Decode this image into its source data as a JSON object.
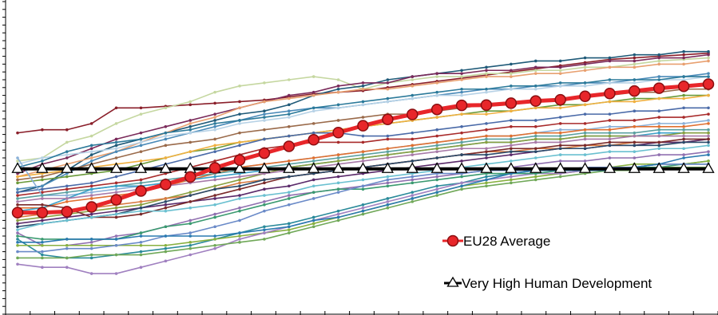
{
  "chart_data": {
    "type": "line",
    "title": "",
    "xlabel": "",
    "ylabel": "",
    "x": [
      1,
      2,
      3,
      4,
      5,
      6,
      7,
      8,
      9,
      10,
      11,
      12,
      13,
      14,
      15,
      16,
      17,
      18,
      19,
      20,
      21,
      22,
      23,
      24,
      25,
      26,
      27,
      28,
      29
    ],
    "ylim": [
      0,
      100
    ],
    "grid": false,
    "legend_position": "bottom-right",
    "highlight_series": [
      {
        "name": "EU28 Average",
        "color": "#e8262a",
        "marker": "circle",
        "values": [
          32.5,
          32.5,
          32.8,
          34.3,
          36.6,
          39.4,
          41.5,
          43.9,
          46.8,
          49.3,
          51.5,
          53.7,
          55.8,
          58.1,
          60.3,
          62.3,
          63.9,
          65.5,
          66.8,
          66.9,
          67.5,
          68.2,
          68.6,
          69.7,
          70.6,
          71.4,
          72.3,
          72.9,
          73.6
        ]
      },
      {
        "name": "Very High Human Development",
        "color": "#000000",
        "marker": "triangle",
        "values": [
          46.5,
          46.5,
          46.5,
          46.5,
          46.5,
          46.5,
          46.5,
          46.5,
          46.5,
          46.5,
          46.5,
          46.5,
          46.5,
          46.5,
          46.5,
          46.5,
          46.5,
          46.5,
          46.5,
          46.5,
          46.5,
          46.5,
          46.5,
          46.5,
          46.5,
          46.5,
          46.5,
          46.5,
          46.5
        ]
      }
    ],
    "background_series": [
      {
        "color": "#8a1f2a",
        "values": [
          58,
          59,
          59,
          61,
          66,
          66,
          66.5,
          67,
          67.5,
          68,
          68.5,
          69.5,
          70.5,
          71,
          71.5,
          72.5,
          73.5,
          74.5,
          75.5,
          76.5,
          77.5,
          78.5,
          79.5,
          80.5,
          81.5,
          82,
          82.5,
          83,
          83.5
        ]
      },
      {
        "color": "#c5d7a0",
        "values": [
          49,
          50,
          55,
          57,
          61,
          64,
          66,
          68,
          71,
          73,
          74,
          75,
          76,
          75,
          72,
          74,
          75,
          76,
          76,
          77,
          77,
          78,
          78,
          79,
          79,
          80,
          81,
          81.5,
          82
        ]
      },
      {
        "color": "#1f5a78",
        "values": [
          39,
          41,
          46,
          51,
          54,
          56,
          58,
          60,
          62,
          64,
          65,
          67,
          70,
          72,
          73,
          75,
          76,
          77,
          78,
          79,
          80,
          81,
          81,
          82,
          82,
          83,
          83,
          84,
          84
        ]
      },
      {
        "color": "#7a2a5a",
        "values": [
          45,
          48,
          50,
          53,
          56,
          58,
          60,
          62,
          64,
          66,
          68,
          70,
          71,
          73,
          74,
          74,
          76,
          77,
          77,
          78,
          78,
          79,
          79,
          80,
          81,
          81,
          82,
          82,
          83
        ]
      },
      {
        "color": "#e8a070",
        "values": [
          44,
          46,
          48,
          50,
          52,
          55,
          58,
          61,
          63,
          66,
          68,
          69,
          70,
          71,
          72,
          72,
          73,
          74,
          75,
          76,
          76,
          77,
          77,
          78,
          79,
          79,
          80,
          80,
          81
        ]
      },
      {
        "color": "#4a8ab8",
        "values": [
          40,
          41,
          45,
          49,
          52,
          54,
          56,
          58,
          60,
          62,
          64,
          65,
          66,
          66,
          67,
          68,
          69,
          70,
          71,
          72,
          72,
          73,
          73,
          74,
          74,
          75,
          76,
          76,
          77
        ]
      },
      {
        "color": "#b7d2e6",
        "values": [
          48,
          50,
          51,
          52,
          53,
          55,
          57,
          58,
          59,
          61,
          62,
          63,
          65,
          66,
          67,
          68,
          69,
          70,
          70,
          71,
          72,
          72,
          73,
          73,
          74,
          74,
          75,
          75,
          76
        ]
      },
      {
        "color": "#2c7a9a",
        "values": [
          47,
          49,
          52,
          54,
          55,
          56,
          58,
          59,
          61,
          62,
          63,
          64,
          66,
          67,
          68,
          69,
          70,
          71,
          72,
          72,
          73,
          73,
          74,
          74,
          75,
          75,
          75,
          76,
          76
        ]
      },
      {
        "color": "#9a6a4a",
        "values": [
          43,
          44,
          46,
          48,
          50,
          52,
          54,
          55,
          56,
          58,
          59,
          60,
          61,
          62,
          63,
          64,
          64,
          65,
          66,
          67,
          68,
          68,
          69,
          70,
          70,
          71,
          71,
          72,
          72
        ]
      },
      {
        "color": "#6a9a3a",
        "values": [
          42,
          43,
          44,
          45,
          46,
          48,
          50,
          52,
          53,
          55,
          56,
          57,
          58,
          59,
          60,
          61,
          62,
          63,
          64,
          65,
          65,
          66,
          67,
          67,
          68,
          69,
          69,
          70,
          70
        ]
      },
      {
        "color": "#f0b040",
        "values": [
          44,
          45,
          46,
          47,
          48,
          49,
          50,
          52,
          54,
          55,
          56,
          57,
          58,
          59,
          60,
          61,
          62,
          63,
          64,
          64,
          65,
          66,
          66,
          67,
          68,
          68,
          69,
          69,
          70
        ]
      },
      {
        "color": "#4a6aa8",
        "values": [
          39,
          40,
          41,
          42,
          44,
          46,
          48,
          50,
          52,
          54,
          56,
          57,
          58,
          58,
          57,
          57,
          58,
          59,
          60,
          61,
          62,
          62,
          63,
          64,
          64,
          65,
          65,
          66,
          66
        ]
      },
      {
        "color": "#a82a2a",
        "values": [
          38,
          39,
          40,
          41,
          42,
          43,
          45,
          47,
          49,
          51,
          53,
          54,
          55,
          55,
          55,
          56,
          56,
          57,
          58,
          59,
          60,
          60,
          61,
          61,
          62,
          62,
          63,
          63,
          64
        ]
      },
      {
        "color": "#8ab0d8",
        "values": [
          50,
          38,
          38,
          39,
          40,
          41,
          42,
          43,
          45,
          47,
          48,
          49,
          50,
          51,
          52,
          53,
          54,
          55,
          56,
          57,
          57,
          58,
          59,
          59,
          60,
          60,
          61,
          61,
          62
        ]
      },
      {
        "color": "#e07030",
        "values": [
          34,
          34,
          36,
          37,
          38,
          39,
          41,
          43,
          45,
          47,
          48,
          49,
          50,
          51,
          52,
          53,
          54,
          55,
          56,
          57,
          57,
          58,
          58,
          59,
          59,
          60,
          60,
          60,
          61
        ]
      },
      {
        "color": "#5aa0a0",
        "values": [
          37,
          38,
          39,
          40,
          41,
          42,
          43,
          44,
          45,
          46,
          47,
          48,
          49,
          50,
          51,
          52,
          53,
          54,
          55,
          56,
          56,
          57,
          57,
          58,
          58,
          58,
          59,
          59,
          59
        ]
      },
      {
        "color": "#3aa0c8",
        "values": [
          33,
          34,
          37,
          40,
          41,
          41,
          42,
          43,
          44,
          45,
          46,
          47,
          48,
          49,
          50,
          51,
          52,
          53,
          54,
          55,
          55,
          56,
          56,
          57,
          57,
          57,
          58,
          58,
          58
        ]
      },
      {
        "color": "#8aa040",
        "values": [
          30,
          31,
          32,
          33,
          34,
          35,
          37,
          39,
          41,
          43,
          45,
          47,
          48,
          49,
          50,
          51,
          52,
          53,
          54,
          55,
          55,
          56,
          56,
          57,
          57,
          57,
          57,
          58,
          58
        ]
      },
      {
        "color": "#a87aa8",
        "values": [
          36,
          37,
          37,
          38,
          39,
          40,
          41,
          42,
          43,
          44,
          45,
          46,
          47,
          48,
          49,
          50,
          51,
          52,
          53,
          53,
          54,
          55,
          55,
          56,
          56,
          57,
          57,
          57,
          57
        ]
      },
      {
        "color": "#d87a40",
        "values": [
          31,
          32,
          33,
          34,
          35,
          36,
          37,
          38,
          40,
          42,
          43,
          44,
          45,
          46,
          47,
          48,
          49,
          50,
          51,
          52,
          52,
          53,
          53,
          54,
          54,
          55,
          55,
          55,
          56
        ]
      },
      {
        "color": "#5a2a6a",
        "values": [
          29,
          30,
          31,
          32,
          33,
          34,
          35,
          36,
          37,
          38,
          40,
          41,
          43,
          44,
          45,
          46,
          47,
          48,
          49,
          50,
          51,
          52,
          53,
          53,
          54,
          54,
          55,
          55,
          56
        ]
      },
      {
        "color": "#7a2a2a",
        "values": [
          35,
          35,
          34,
          31,
          31,
          32,
          34,
          36,
          38,
          40,
          42,
          44,
          45,
          46,
          47,
          48,
          49,
          50,
          51,
          52,
          53,
          53,
          54,
          54,
          55,
          55,
          55,
          56,
          56
        ]
      },
      {
        "color": "#2a4a6a",
        "values": [
          28,
          29,
          30,
          31,
          32,
          34,
          36,
          38,
          40,
          41,
          43,
          44,
          45,
          46,
          47,
          48,
          49,
          50,
          51,
          51,
          52,
          52,
          53,
          53,
          54,
          54,
          54,
          55,
          55
        ]
      },
      {
        "color": "#6ac0d0",
        "values": [
          27,
          29,
          30,
          31,
          32,
          33,
          33,
          34,
          35,
          37,
          38,
          39,
          41,
          42,
          43,
          44,
          45,
          46,
          47,
          48,
          49,
          50,
          51,
          51,
          52,
          52,
          53,
          53,
          54
        ]
      },
      {
        "color": "#9070b0",
        "values": [
          26,
          22,
          22,
          23,
          25,
          26,
          28,
          30,
          32,
          34,
          36,
          38,
          39,
          40,
          41,
          42,
          43,
          44,
          45,
          46,
          47,
          48,
          49,
          49,
          50,
          50,
          51,
          51,
          52
        ]
      },
      {
        "color": "#2a8a9a",
        "values": [
          24,
          19,
          18,
          18,
          19,
          20,
          21,
          22,
          24,
          26,
          28,
          29,
          31,
          33,
          35,
          37,
          39,
          41,
          42,
          44,
          45,
          46,
          46,
          47,
          47,
          47,
          48,
          48,
          49
        ]
      },
      {
        "color": "#88b040",
        "values": [
          22,
          22,
          22,
          22,
          22,
          22,
          22,
          23,
          24,
          25,
          26,
          27,
          29,
          31,
          33,
          35,
          37,
          39,
          41,
          42,
          43,
          44,
          45,
          46,
          47,
          48,
          48,
          48,
          49
        ]
      },
      {
        "color": "#a080c0",
        "values": [
          16,
          15,
          15,
          13,
          13,
          15,
          17,
          19,
          21,
          24,
          26,
          28,
          30,
          32,
          34,
          36,
          38,
          40,
          42,
          43,
          44,
          45,
          45,
          46,
          47,
          47,
          48,
          48,
          48
        ]
      },
      {
        "color": "#3a9a70",
        "values": [
          25,
          24,
          24,
          24,
          24,
          26,
          28,
          29,
          31,
          33,
          35,
          37,
          39,
          40,
          40,
          41,
          42,
          43,
          44,
          45,
          45,
          45,
          46,
          46,
          46,
          47,
          47,
          48,
          48
        ]
      },
      {
        "color": "#6a8ac8",
        "values": [
          20,
          20,
          21,
          21,
          22,
          23,
          25,
          26,
          28,
          30,
          33,
          35,
          37,
          39,
          41,
          43,
          44,
          45,
          45,
          46,
          46,
          46,
          46,
          47,
          47,
          47,
          48,
          48,
          48
        ]
      },
      {
        "color": "#70a858",
        "values": [
          18,
          18,
          18,
          19,
          19,
          19,
          20,
          21,
          22,
          23,
          24,
          26,
          28,
          30,
          32,
          34,
          36,
          38,
          40,
          41,
          42,
          43,
          44,
          45,
          46,
          46,
          47,
          47,
          47
        ]
      },
      {
        "color": "#2a7ab0",
        "values": [
          23,
          23,
          24,
          24,
          24,
          25,
          25,
          25,
          25,
          26,
          27,
          28,
          30,
          31,
          33,
          35,
          37,
          39,
          41,
          43,
          45,
          46,
          46,
          46,
          46,
          47,
          48,
          50,
          51
        ]
      }
    ]
  }
}
